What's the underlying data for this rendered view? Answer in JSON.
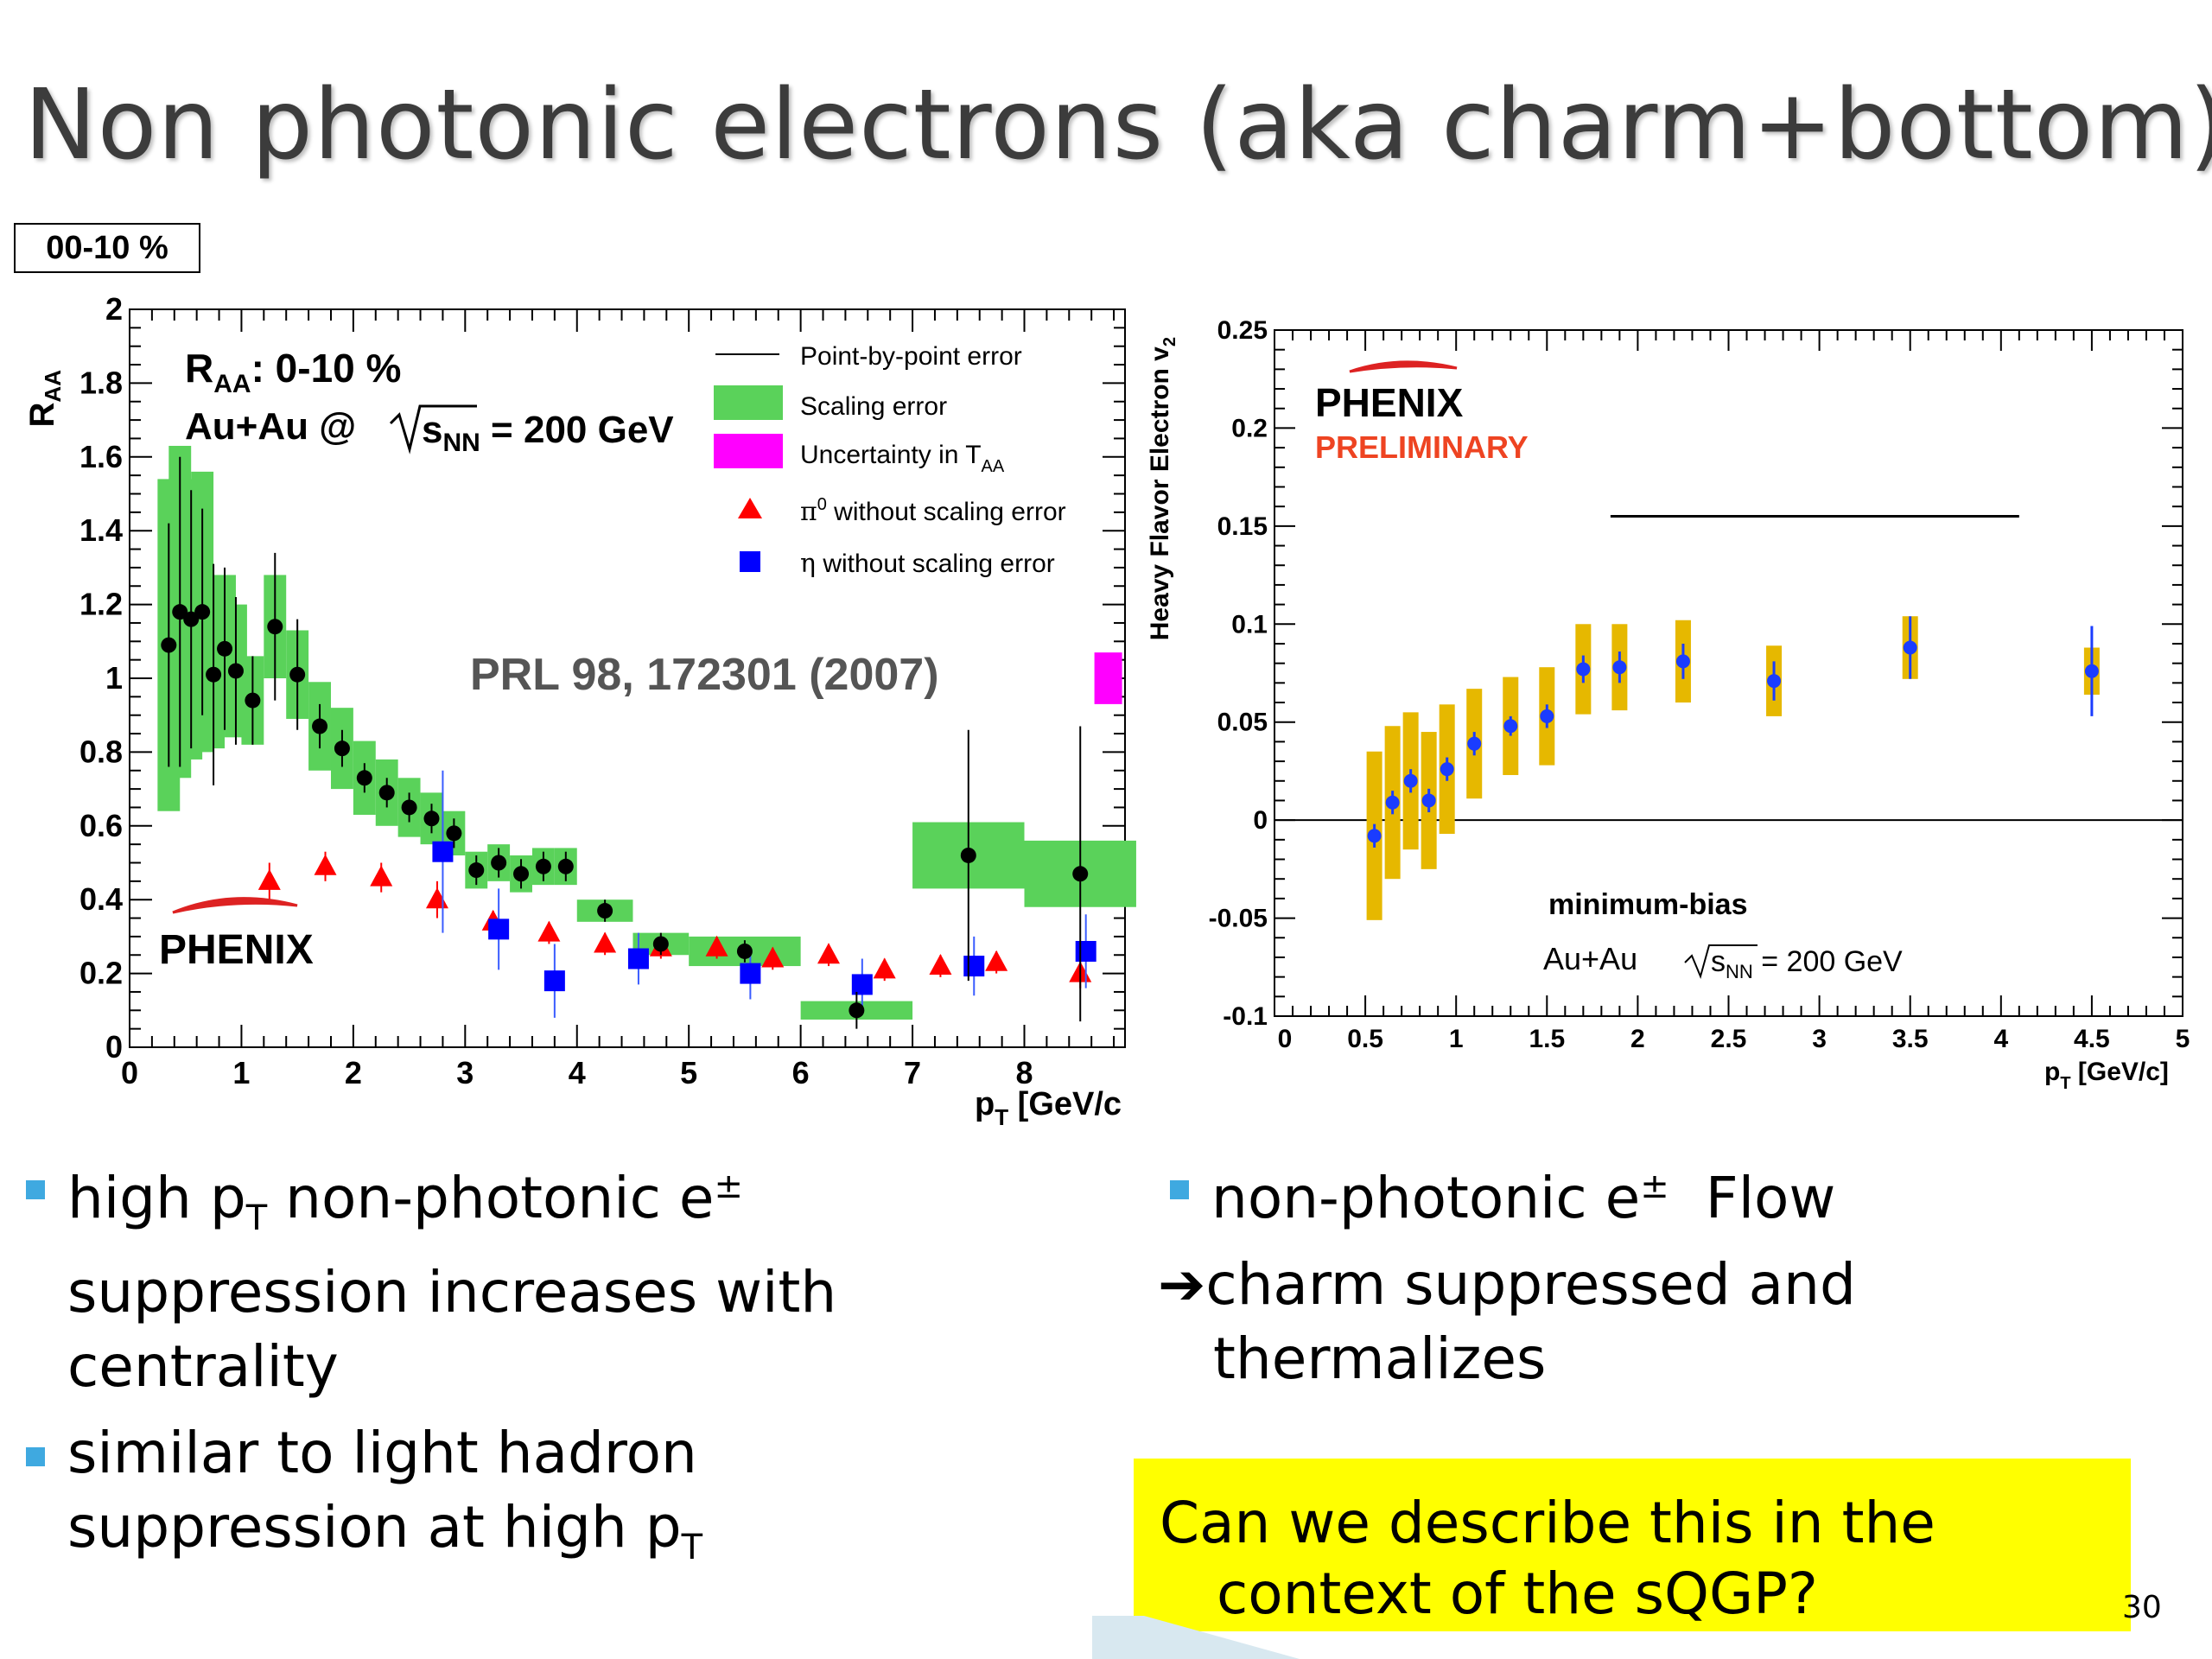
{
  "slide": {
    "title": "Non photonic electrons (aka charm+bottom)",
    "centrality_badge": "00-10 %",
    "page_number": "30"
  },
  "bullets_left": [
    {
      "lines": [
        "high p",
        "T",
        " non-photonic e",
        "±"
      ],
      "line2": "suppression increases with",
      "line3": "centrality"
    },
    {
      "line1": "similar to light hadron",
      "line2a": "suppression at high p",
      "line2b": "T"
    }
  ],
  "bullets_right": {
    "item1_a": "non-photonic e",
    "item1_sup": "±",
    "item1_b": "  Flow",
    "arrow_line1": "charm suppressed and",
    "arrow_line2": "thermalizes"
  },
  "conclusion": {
    "line1": "Can we describe this in the",
    "line2": "context of the sQGP?"
  },
  "chart_data": [
    {
      "type": "scatter",
      "ylabel_main": "R",
      "ylabel_sub": "AA",
      "xlabel_main": "p",
      "xlabel_sub": "T",
      "xlabel_unit": " [GeV/c",
      "xlim": [
        0,
        8.9
      ],
      "ylim": [
        0,
        2
      ],
      "xticks": [
        0,
        1,
        2,
        3,
        4,
        5,
        6,
        7,
        8
      ],
      "yticks": [
        0,
        0.2,
        0.4,
        0.6,
        0.8,
        1,
        1.2,
        1.4,
        1.6,
        1.8,
        2
      ],
      "annotation_raa_main": "R",
      "annotation_raa_sub": "AA",
      "annotation_raa_rest": ": 0-10 %",
      "annotation_system_a": "Au+Au @ ",
      "annotation_system_s": "s",
      "annotation_system_sub": "NN",
      "annotation_system_b": " = 200 GeV",
      "reference": "PRL 98, 172301 (2007)",
      "logo": "PHENIX",
      "legend": [
        {
          "label": "Point-by-point error"
        },
        {
          "label": "Scaling error",
          "color": "#5ad25a"
        },
        {
          "label": "Uncertainty in T",
          "sub": "AA",
          "color": "#ff00ff"
        },
        {
          "label_sym": "π",
          "label_sup": "0",
          "label": " without scaling error",
          "color": "#ff0000"
        },
        {
          "label_sym": "η",
          "label": " without scaling error",
          "color": "#0000ff"
        }
      ],
      "taa_uncertainty": {
        "x": 8.75,
        "y": [
          0.93,
          1.07
        ]
      },
      "series": [
        {
          "name": "non-photonic electrons",
          "marker": "circle",
          "color": "#000000",
          "points": [
            {
              "x": 0.35,
              "y": 1.09,
              "e": 0.33,
              "s": 0.45,
              "w": 0.2
            },
            {
              "x": 0.45,
              "y": 1.18,
              "e": 0.42,
              "s": 0.45,
              "w": 0.2
            },
            {
              "x": 0.55,
              "y": 1.16,
              "e": 0.35,
              "s": 0.38,
              "w": 0.2
            },
            {
              "x": 0.65,
              "y": 1.18,
              "e": 0.28,
              "s": 0.38,
              "w": 0.2
            },
            {
              "x": 0.75,
              "y": 1.01,
              "e": 0.3,
              "s": 0.2,
              "w": 0.2
            },
            {
              "x": 0.85,
              "y": 1.08,
              "e": 0.22,
              "s": 0.2,
              "w": 0.2
            },
            {
              "x": 0.95,
              "y": 1.02,
              "e": 0.2,
              "s": 0.18,
              "w": 0.2
            },
            {
              "x": 1.1,
              "y": 0.94,
              "e": 0.12,
              "s": 0.12,
              "w": 0.2
            },
            {
              "x": 1.3,
              "y": 1.14,
              "e": 0.2,
              "s": 0.14,
              "w": 0.2
            },
            {
              "x": 1.5,
              "y": 1.01,
              "e": 0.15,
              "s": 0.12,
              "w": 0.2
            },
            {
              "x": 1.7,
              "y": 0.87,
              "e": 0.06,
              "s": 0.12,
              "w": 0.2
            },
            {
              "x": 1.9,
              "y": 0.81,
              "e": 0.05,
              "s": 0.11,
              "w": 0.2
            },
            {
              "x": 2.1,
              "y": 0.73,
              "e": 0.04,
              "s": 0.1,
              "w": 0.2
            },
            {
              "x": 2.3,
              "y": 0.69,
              "e": 0.04,
              "s": 0.09,
              "w": 0.2
            },
            {
              "x": 2.5,
              "y": 0.65,
              "e": 0.04,
              "s": 0.08,
              "w": 0.2
            },
            {
              "x": 2.7,
              "y": 0.62,
              "e": 0.04,
              "s": 0.07,
              "w": 0.2
            },
            {
              "x": 2.9,
              "y": 0.58,
              "e": 0.04,
              "s": 0.06,
              "w": 0.2
            },
            {
              "x": 3.1,
              "y": 0.48,
              "e": 0.04,
              "s": 0.05,
              "w": 0.2
            },
            {
              "x": 3.3,
              "y": 0.5,
              "e": 0.04,
              "s": 0.05,
              "w": 0.2
            },
            {
              "x": 3.5,
              "y": 0.47,
              "e": 0.04,
              "s": 0.05,
              "w": 0.2
            },
            {
              "x": 3.7,
              "y": 0.49,
              "e": 0.04,
              "s": 0.05,
              "w": 0.2
            },
            {
              "x": 3.9,
              "y": 0.49,
              "e": 0.04,
              "s": 0.05,
              "w": 0.2
            },
            {
              "x": 4.25,
              "y": 0.37,
              "e": 0.03,
              "s": 0.03,
              "w": 0.5
            },
            {
              "x": 4.75,
              "y": 0.28,
              "e": 0.03,
              "s": 0.03,
              "w": 0.5
            },
            {
              "x": 5.5,
              "y": 0.26,
              "e": 0.03,
              "s": 0.04,
              "w": 1.0
            },
            {
              "x": 6.5,
              "y": 0.1,
              "e": 0.05,
              "s": 0.025,
              "w": 1.0
            },
            {
              "x": 7.5,
              "y": 0.52,
              "e": 0.34,
              "s": 0.09,
              "w": 1.0
            },
            {
              "x": 8.5,
              "y": 0.47,
              "e": 0.4,
              "s": 0.09,
              "w": 1.0
            }
          ]
        },
        {
          "name": "π0",
          "marker": "triangle",
          "color": "#ff0000",
          "points": [
            {
              "x": 1.25,
              "y": 0.45,
              "e": 0.05
            },
            {
              "x": 1.75,
              "y": 0.49,
              "e": 0.04
            },
            {
              "x": 2.25,
              "y": 0.46,
              "e": 0.04
            },
            {
              "x": 2.75,
              "y": 0.4,
              "e": 0.05
            },
            {
              "x": 3.25,
              "y": 0.34,
              "e": 0.03
            },
            {
              "x": 3.75,
              "y": 0.31,
              "e": 0.03
            },
            {
              "x": 4.25,
              "y": 0.28,
              "e": 0.03
            },
            {
              "x": 4.75,
              "y": 0.27,
              "e": 0.03
            },
            {
              "x": 5.25,
              "y": 0.27,
              "e": 0.03
            },
            {
              "x": 5.75,
              "y": 0.24,
              "e": 0.03
            },
            {
              "x": 6.25,
              "y": 0.25,
              "e": 0.03
            },
            {
              "x": 6.75,
              "y": 0.21,
              "e": 0.03
            },
            {
              "x": 7.25,
              "y": 0.22,
              "e": 0.03
            },
            {
              "x": 7.75,
              "y": 0.23,
              "e": 0.03
            },
            {
              "x": 8.5,
              "y": 0.2,
              "e": 0.04
            }
          ]
        },
        {
          "name": "η",
          "marker": "square",
          "color": "#0000ff",
          "points": [
            {
              "x": 2.8,
              "y": 0.53,
              "e": 0.22
            },
            {
              "x": 3.3,
              "y": 0.32,
              "e": 0.11
            },
            {
              "x": 3.8,
              "y": 0.18,
              "e": 0.1
            },
            {
              "x": 4.55,
              "y": 0.24,
              "e": 0.07
            },
            {
              "x": 5.55,
              "y": 0.2,
              "e": 0.07
            },
            {
              "x": 6.55,
              "y": 0.17,
              "e": 0.07
            },
            {
              "x": 7.55,
              "y": 0.22,
              "e": 0.08
            },
            {
              "x": 8.55,
              "y": 0.26,
              "e": 0.1
            }
          ]
        }
      ]
    },
    {
      "type": "scatter",
      "ylabel": "Heavy Flavor Electron v",
      "ylabel_sub": "2",
      "xlabel_main": "p",
      "xlabel_sub": "T",
      "xlabel_unit": " [GeV/c]",
      "xlim": [
        0,
        5
      ],
      "ylim": [
        -0.1,
        0.25
      ],
      "xticks": [
        "0",
        "0.5",
        "1",
        "1.5",
        "2",
        "2.5",
        "3",
        "3.5",
        "4",
        "4.5",
        "5"
      ],
      "yticks": [
        "-0.1",
        "-0.05",
        "0",
        "0.05",
        "0.1",
        "0.15",
        "0.2",
        "0.25"
      ],
      "logo": "PHENIX",
      "logo_sub": "PRELIMINARY",
      "label_minbias": "minimum-bias",
      "label_system_a": "Au+Au  ",
      "label_system_s": "s",
      "label_system_sub": "NN",
      "label_system_b": " = 200 GeV",
      "legend_line": {
        "x": [
          1.85,
          4.1
        ],
        "y": 0.155
      },
      "series": [
        {
          "name": "v2",
          "marker": "circle",
          "color": "#1a3cff",
          "syscolor": "#e6b800",
          "points": [
            {
              "x": 0.55,
              "y": -0.008,
              "e": 0.006,
              "s": 0.043
            },
            {
              "x": 0.65,
              "y": 0.009,
              "e": 0.006,
              "s": 0.039
            },
            {
              "x": 0.75,
              "y": 0.02,
              "e": 0.006,
              "s": 0.035
            },
            {
              "x": 0.85,
              "y": 0.01,
              "e": 0.006,
              "s": 0.035
            },
            {
              "x": 0.95,
              "y": 0.026,
              "e": 0.006,
              "s": 0.033
            },
            {
              "x": 1.1,
              "y": 0.039,
              "e": 0.006,
              "s": 0.028
            },
            {
              "x": 1.3,
              "y": 0.048,
              "e": 0.005,
              "s": 0.025
            },
            {
              "x": 1.5,
              "y": 0.053,
              "e": 0.006,
              "s": 0.025
            },
            {
              "x": 1.7,
              "y": 0.077,
              "e": 0.007,
              "s": 0.023
            },
            {
              "x": 1.9,
              "y": 0.078,
              "e": 0.008,
              "s": 0.022
            },
            {
              "x": 2.25,
              "y": 0.081,
              "e": 0.009,
              "s": 0.021
            },
            {
              "x": 2.75,
              "y": 0.071,
              "e": 0.01,
              "s": 0.018
            },
            {
              "x": 3.5,
              "y": 0.088,
              "e": 0.016,
              "s": 0.016
            },
            {
              "x": 4.5,
              "y": 0.076,
              "e": 0.023,
              "s": 0.012
            }
          ]
        }
      ]
    }
  ]
}
